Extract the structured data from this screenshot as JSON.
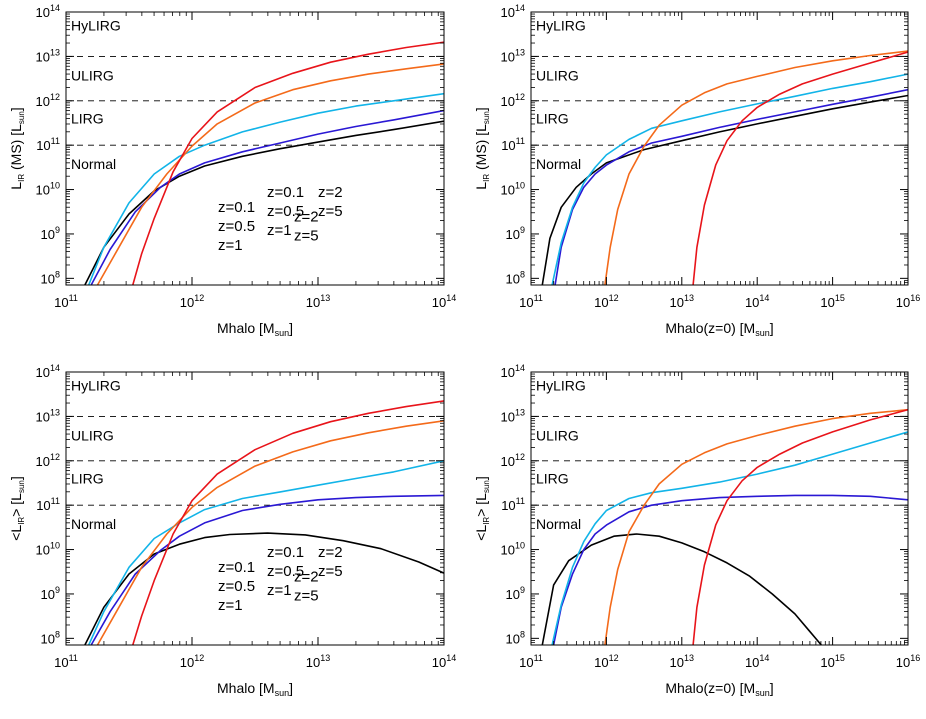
{
  "chart_data": [
    {
      "type": "line",
      "xlabel": "Mhalo [M",
      "xlabel_sub": "sun",
      "xlabel_tail": "]",
      "ylabel_main": "L",
      "ylabel_sub": "IR",
      "ylabel_mid": " (MS) [L",
      "ylabel_sub2": "sun",
      "ylabel_tail": "]",
      "xscale": "log",
      "yscale": "log",
      "xlim": [
        11,
        14
      ],
      "ylim": [
        7.85,
        14
      ],
      "xticks": [
        11,
        12,
        13,
        14
      ],
      "yticks": [
        8,
        9,
        10,
        11,
        12,
        13,
        14
      ],
      "tick_base": "10",
      "thresholds": [
        11,
        12,
        13
      ],
      "regions": [
        {
          "label": "HyLIRG",
          "y": 13.7
        },
        {
          "label": "ULIRG",
          "y": 12.57
        },
        {
          "label": "LIRG",
          "y": 11.6
        },
        {
          "label": "Normal",
          "y": 10.58
        }
      ],
      "series": [
        {
          "name": "z=0.1",
          "color": "#000000",
          "x": [
            11.15,
            11.3,
            11.5,
            11.7,
            11.9,
            12.1,
            12.4,
            12.7,
            13.0,
            13.3,
            13.6,
            14.0
          ],
          "y": [
            7.85,
            8.7,
            9.45,
            9.97,
            10.3,
            10.53,
            10.75,
            10.92,
            11.07,
            11.22,
            11.35,
            11.54
          ]
        },
        {
          "name": "z=0.5",
          "color": "#2a18d4",
          "x": [
            11.2,
            11.35,
            11.55,
            11.75,
            11.9,
            12.1,
            12.4,
            12.7,
            13.0,
            13.3,
            13.6,
            14.0
          ],
          "y": [
            7.85,
            8.65,
            9.5,
            10.05,
            10.35,
            10.6,
            10.85,
            11.05,
            11.25,
            11.42,
            11.57,
            11.78
          ]
        },
        {
          "name": "z=1",
          "color": "#12b4e8",
          "x": [
            11.18,
            11.3,
            11.5,
            11.7,
            11.9,
            12.1,
            12.4,
            12.7,
            13.0,
            13.3,
            13.6,
            14.0
          ],
          "y": [
            7.85,
            8.7,
            9.7,
            10.35,
            10.75,
            11.0,
            11.3,
            11.52,
            11.72,
            11.88,
            12.0,
            12.16
          ]
        },
        {
          "name": "z=2",
          "color": "#f46a1a",
          "x": [
            11.25,
            11.4,
            11.6,
            11.8,
            12.0,
            12.2,
            12.5,
            12.8,
            13.1,
            13.4,
            13.7,
            14.0
          ],
          "y": [
            7.85,
            8.6,
            9.6,
            10.35,
            10.98,
            11.48,
            11.95,
            12.25,
            12.45,
            12.6,
            12.72,
            12.83
          ]
        },
        {
          "name": "z=5",
          "color": "#e8141a",
          "x": [
            11.53,
            11.6,
            11.7,
            11.85,
            12.0,
            12.2,
            12.5,
            12.8,
            13.1,
            13.4,
            13.7,
            14.0
          ],
          "y": [
            7.85,
            8.55,
            9.35,
            10.4,
            11.15,
            11.75,
            12.3,
            12.62,
            12.87,
            13.05,
            13.2,
            13.32
          ]
        }
      ],
      "legend": [
        {
          "text": "z=0.1",
          "series": 0,
          "col": 0,
          "row": 0
        },
        {
          "text": "z=0.5",
          "series": 1,
          "col": 0,
          "row": 1
        },
        {
          "text": "z=1",
          "series": 2,
          "col": 0,
          "row": 2
        },
        {
          "text": "z=2",
          "series": 3,
          "col": 1,
          "row": 0.5
        },
        {
          "text": "z=5",
          "series": 4,
          "col": 1,
          "row": 1.5
        }
      ]
    },
    {
      "type": "line",
      "xlabel": "Mhalo(z=0) [M",
      "xlabel_sub": "sun",
      "xlabel_tail": "]",
      "ylabel_main": "L",
      "ylabel_sub": "IR",
      "ylabel_mid": " (MS) [L",
      "ylabel_sub2": "sun",
      "ylabel_tail": "]",
      "xscale": "log",
      "yscale": "log",
      "xlim": [
        11,
        16
      ],
      "ylim": [
        7.85,
        14
      ],
      "xticks": [
        11,
        12,
        13,
        14,
        15,
        16
      ],
      "yticks": [
        8,
        9,
        10,
        11,
        12,
        13,
        14
      ],
      "tick_base": "10",
      "thresholds": [
        11,
        12,
        13
      ],
      "regions": [
        {
          "label": "HyLIRG",
          "y": 13.7
        },
        {
          "label": "ULIRG",
          "y": 12.57
        },
        {
          "label": "LIRG",
          "y": 11.6
        },
        {
          "label": "Normal",
          "y": 10.58
        }
      ],
      "series": [
        {
          "name": "z=0.1",
          "color": "#000000",
          "x": [
            11.15,
            11.25,
            11.4,
            11.6,
            11.8,
            12.0,
            12.5,
            13.0,
            13.5,
            14.0,
            14.5,
            15.0,
            15.5,
            16.0
          ],
          "y": [
            7.85,
            8.9,
            9.6,
            10.05,
            10.35,
            10.6,
            10.9,
            11.1,
            11.3,
            11.48,
            11.65,
            11.82,
            11.97,
            12.12
          ]
        },
        {
          "name": "z=0.5",
          "color": "#2a18d4",
          "x": [
            11.32,
            11.4,
            11.55,
            11.7,
            11.85,
            12.0,
            12.3,
            12.6,
            13.0,
            13.5,
            14.0,
            14.5,
            15.0,
            15.5,
            16.0
          ],
          "y": [
            7.85,
            8.7,
            9.55,
            10.05,
            10.35,
            10.55,
            10.85,
            11.05,
            11.2,
            11.4,
            11.58,
            11.75,
            11.92,
            12.08,
            12.25
          ]
        },
        {
          "name": "z=1",
          "color": "#12b4e8",
          "x": [
            11.28,
            11.4,
            11.55,
            11.7,
            11.85,
            12.0,
            12.3,
            12.6,
            13.0,
            13.5,
            14.0,
            14.5,
            15.0,
            15.5,
            16.0
          ],
          "y": [
            7.85,
            8.8,
            9.6,
            10.15,
            10.5,
            10.78,
            11.13,
            11.38,
            11.55,
            11.75,
            11.93,
            12.1,
            12.28,
            12.43,
            12.6
          ]
        },
        {
          "name": "z=2",
          "color": "#f46a1a",
          "x": [
            11.98,
            12.05,
            12.15,
            12.3,
            12.5,
            12.7,
            13.0,
            13.3,
            13.6,
            14.0,
            14.5,
            15.0,
            15.5,
            16.0
          ],
          "y": [
            7.85,
            8.7,
            9.55,
            10.35,
            10.98,
            11.45,
            11.9,
            12.18,
            12.38,
            12.55,
            12.75,
            12.9,
            13.02,
            13.12
          ]
        },
        {
          "name": "z=5",
          "color": "#e8141a",
          "x": [
            13.15,
            13.2,
            13.3,
            13.45,
            13.6,
            13.8,
            14.0,
            14.3,
            14.6,
            15.0,
            15.5,
            16.0
          ],
          "y": [
            7.85,
            8.7,
            9.65,
            10.55,
            11.1,
            11.55,
            11.85,
            12.15,
            12.38,
            12.6,
            12.85,
            13.1
          ]
        }
      ],
      "legend": [
        {
          "text": "z=0.1",
          "series": 0,
          "col": 0,
          "row": 0
        },
        {
          "text": "z=0.5",
          "series": 1,
          "col": 0,
          "row": 1
        },
        {
          "text": "z=1",
          "series": 2,
          "col": 0,
          "row": 2
        },
        {
          "text": "z=2",
          "series": 3,
          "col": 1,
          "row": 0
        },
        {
          "text": "z=5",
          "series": 4,
          "col": 1,
          "row": 1
        }
      ]
    },
    {
      "type": "line",
      "xlabel": "Mhalo [M",
      "xlabel_sub": "sun",
      "xlabel_tail": "]",
      "ylabel_main": "<L",
      "ylabel_sub": "IR",
      "ylabel_mid": "> [L",
      "ylabel_sub2": "sun",
      "ylabel_tail": "]",
      "xscale": "log",
      "yscale": "log",
      "xlim": [
        11,
        14
      ],
      "ylim": [
        7.85,
        14
      ],
      "xticks": [
        11,
        12,
        13,
        14
      ],
      "yticks": [
        8,
        9,
        10,
        11,
        12,
        13,
        14
      ],
      "tick_base": "10",
      "thresholds": [
        11,
        12,
        13
      ],
      "regions": [
        {
          "label": "HyLIRG",
          "y": 13.7
        },
        {
          "label": "ULIRG",
          "y": 12.57
        },
        {
          "label": "LIRG",
          "y": 11.6
        },
        {
          "label": "Normal",
          "y": 10.58
        }
      ],
      "series": [
        {
          "name": "z=0.1",
          "color": "#000000",
          "x": [
            11.15,
            11.3,
            11.5,
            11.7,
            11.9,
            12.1,
            12.3,
            12.6,
            12.9,
            13.2,
            13.5,
            13.8,
            14.0
          ],
          "y": [
            7.85,
            8.7,
            9.45,
            9.9,
            10.12,
            10.27,
            10.34,
            10.37,
            10.33,
            10.2,
            10.02,
            9.72,
            9.47
          ]
        },
        {
          "name": "z=0.5",
          "color": "#2a18d4",
          "x": [
            11.2,
            11.35,
            11.55,
            11.75,
            11.9,
            12.1,
            12.4,
            12.7,
            13.0,
            13.3,
            13.6,
            14.0
          ],
          "y": [
            7.85,
            8.6,
            9.45,
            9.98,
            10.3,
            10.6,
            10.88,
            11.02,
            11.12,
            11.17,
            11.2,
            11.22
          ]
        },
        {
          "name": "z=1",
          "color": "#12b4e8",
          "x": [
            11.18,
            11.3,
            11.5,
            11.7,
            11.9,
            12.1,
            12.4,
            12.7,
            13.0,
            13.3,
            13.6,
            14.0
          ],
          "y": [
            7.85,
            8.6,
            9.6,
            10.25,
            10.6,
            10.9,
            11.15,
            11.3,
            11.45,
            11.6,
            11.75,
            12.0
          ]
        },
        {
          "name": "z=2",
          "color": "#f46a1a",
          "x": [
            11.25,
            11.4,
            11.6,
            11.8,
            12.0,
            12.2,
            12.5,
            12.8,
            13.1,
            13.4,
            13.7,
            14.0
          ],
          "y": [
            7.85,
            8.6,
            9.6,
            10.35,
            10.95,
            11.4,
            11.88,
            12.2,
            12.45,
            12.63,
            12.78,
            12.9
          ]
        },
        {
          "name": "z=5",
          "color": "#e8141a",
          "x": [
            11.53,
            11.6,
            11.7,
            11.85,
            12.0,
            12.2,
            12.5,
            12.8,
            13.1,
            13.4,
            13.7,
            14.0
          ],
          "y": [
            7.85,
            8.5,
            9.3,
            10.35,
            11.1,
            11.7,
            12.25,
            12.62,
            12.88,
            13.07,
            13.22,
            13.35
          ]
        }
      ],
      "legend": [
        {
          "text": "z=0.1",
          "series": 0,
          "col": 0,
          "row": 0
        },
        {
          "text": "z=0.5",
          "series": 1,
          "col": 0,
          "row": 1
        },
        {
          "text": "z=1",
          "series": 2,
          "col": 0,
          "row": 2
        },
        {
          "text": "z=2",
          "series": 3,
          "col": 1,
          "row": 0.5
        },
        {
          "text": "z=5",
          "series": 4,
          "col": 1,
          "row": 1.5
        }
      ]
    },
    {
      "type": "line",
      "xlabel": "Mhalo(z=0) [M",
      "xlabel_sub": "sun",
      "xlabel_tail": "]",
      "ylabel_main": "<L",
      "ylabel_sub": "IR",
      "ylabel_mid": "> [L",
      "ylabel_sub2": "sun",
      "ylabel_tail": "]",
      "xscale": "log",
      "yscale": "log",
      "xlim": [
        11,
        16
      ],
      "ylim": [
        7.85,
        14
      ],
      "xticks": [
        11,
        12,
        13,
        14,
        15,
        16
      ],
      "yticks": [
        8,
        9,
        10,
        11,
        12,
        13,
        14
      ],
      "tick_base": "10",
      "thresholds": [
        11,
        12,
        13
      ],
      "regions": [
        {
          "label": "HyLIRG",
          "y": 13.7
        },
        {
          "label": "ULIRG",
          "y": 12.57
        },
        {
          "label": "LIRG",
          "y": 11.6
        },
        {
          "label": "Normal",
          "y": 10.58
        }
      ],
      "series": [
        {
          "name": "z=0.1",
          "color": "#000000",
          "x": [
            11.15,
            11.3,
            11.5,
            11.8,
            12.1,
            12.4,
            12.7,
            13.0,
            13.3,
            13.6,
            13.9,
            14.2,
            14.5,
            14.7,
            14.85
          ],
          "y": [
            7.85,
            9.2,
            9.75,
            10.1,
            10.3,
            10.35,
            10.3,
            10.15,
            9.95,
            9.7,
            9.4,
            9.0,
            8.55,
            8.15,
            7.85
          ]
        },
        {
          "name": "z=0.5",
          "color": "#2a18d4",
          "x": [
            11.3,
            11.4,
            11.55,
            11.7,
            11.85,
            12.0,
            12.3,
            12.6,
            13.0,
            13.5,
            14.0,
            14.5,
            15.0,
            15.5,
            16.0
          ],
          "y": [
            7.85,
            8.7,
            9.45,
            10.0,
            10.35,
            10.55,
            10.85,
            11.0,
            11.1,
            11.17,
            11.2,
            11.22,
            11.22,
            11.2,
            11.12
          ]
        },
        {
          "name": "z=1",
          "color": "#12b4e8",
          "x": [
            11.28,
            11.4,
            11.55,
            11.7,
            11.85,
            12.0,
            12.3,
            12.6,
            13.0,
            13.5,
            14.0,
            14.5,
            15.0,
            15.5,
            16.0
          ],
          "y": [
            7.85,
            8.75,
            9.6,
            10.18,
            10.58,
            10.88,
            11.15,
            11.28,
            11.38,
            11.52,
            11.7,
            11.9,
            12.15,
            12.4,
            12.65
          ]
        },
        {
          "name": "z=2",
          "color": "#f46a1a",
          "x": [
            11.98,
            12.05,
            12.15,
            12.3,
            12.5,
            12.7,
            13.0,
            13.3,
            13.6,
            14.0,
            14.5,
            15.0,
            15.5,
            16.0
          ],
          "y": [
            7.85,
            8.7,
            9.55,
            10.4,
            11.0,
            11.48,
            11.92,
            12.18,
            12.38,
            12.57,
            12.78,
            12.95,
            13.07,
            13.15
          ]
        },
        {
          "name": "z=5",
          "color": "#e8141a",
          "x": [
            13.15,
            13.2,
            13.3,
            13.45,
            13.6,
            13.8,
            14.0,
            14.3,
            14.6,
            15.0,
            15.5,
            16.0
          ],
          "y": [
            7.85,
            8.7,
            9.65,
            10.55,
            11.1,
            11.55,
            11.85,
            12.15,
            12.4,
            12.65,
            12.92,
            13.15
          ]
        }
      ],
      "legend": [
        {
          "text": "z=0.1",
          "series": 0,
          "col": 0,
          "row": 0
        },
        {
          "text": "z=0.5",
          "series": 1,
          "col": 0,
          "row": 1
        },
        {
          "text": "z=1",
          "series": 2,
          "col": 0,
          "row": 2
        },
        {
          "text": "z=2",
          "series": 3,
          "col": 1,
          "row": 0
        },
        {
          "text": "z=5",
          "series": 4,
          "col": 1,
          "row": 1
        }
      ]
    }
  ]
}
